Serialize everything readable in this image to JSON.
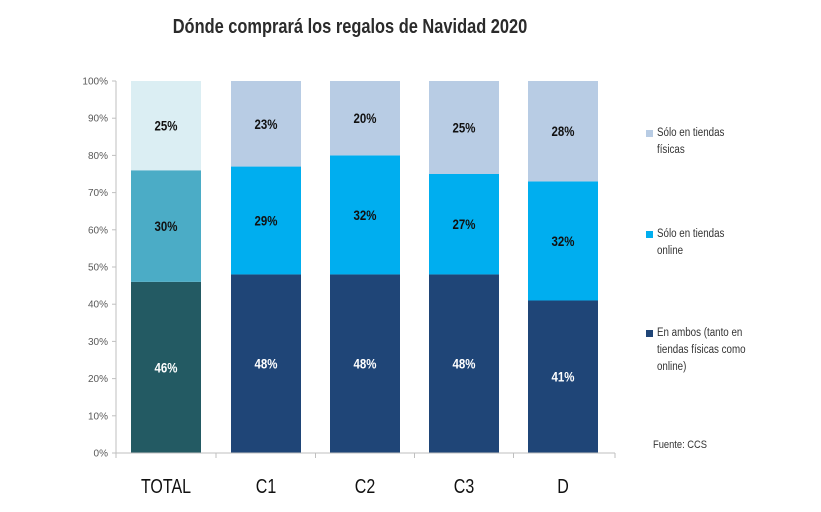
{
  "chart_data": {
    "type": "bar",
    "stacked": true,
    "title": "Dónde comprará los regalos de Navidad 2020",
    "categories": [
      "TOTAL",
      "C1",
      "C2",
      "C3",
      "D"
    ],
    "ylim": [
      0,
      100
    ],
    "yticks": [
      "0%",
      "10%",
      "20%",
      "30%",
      "40%",
      "50%",
      "60%",
      "70%",
      "80%",
      "90%",
      "100%"
    ],
    "series": [
      {
        "name": "En ambos (tanto en tiendas físicas como online)",
        "values": [
          46,
          48,
          48,
          48,
          41
        ],
        "labels": [
          "46%",
          "48%",
          "48%",
          "48%",
          "41%"
        ],
        "color": "#1f4577",
        "total_color": "#235a63"
      },
      {
        "name": "Sólo en tiendas online",
        "values": [
          30,
          29,
          32,
          27,
          32
        ],
        "labels": [
          "30%",
          "29%",
          "32%",
          "27%",
          "32%"
        ],
        "color": "#00aeef",
        "total_color": "#4bacc6"
      },
      {
        "name": "Sólo en tiendas físicas",
        "values": [
          25,
          23,
          20,
          25,
          28
        ],
        "labels": [
          "25%",
          "23%",
          "20%",
          "25%",
          "28%"
        ],
        "color": "#b8cce4",
        "total_color": "#dbeef3"
      }
    ]
  },
  "legend": [
    {
      "label": "Sólo en tiendas físicas",
      "color": "#b8cce4"
    },
    {
      "label": "Sólo en tiendas online",
      "color": "#00aeef"
    },
    {
      "label": "En ambos (tanto en tiendas físicas como online)",
      "color": "#1f4577"
    }
  ],
  "source": "Fuente: CCS"
}
